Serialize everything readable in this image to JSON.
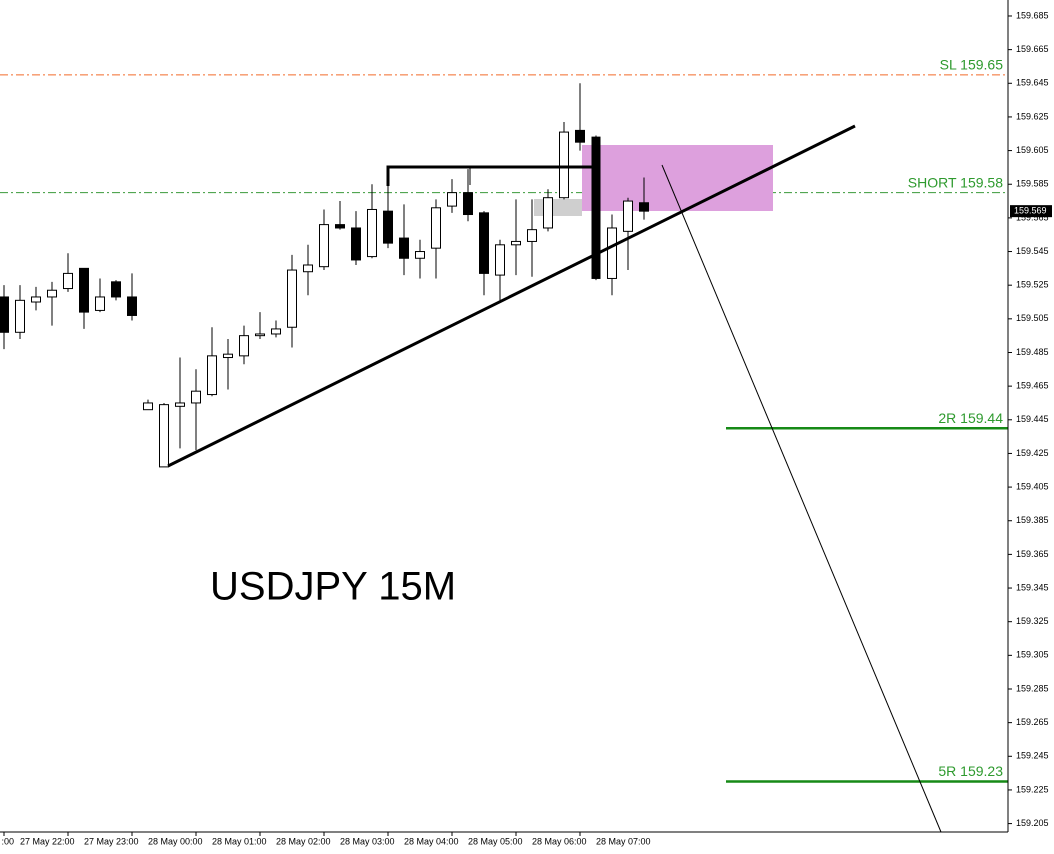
{
  "chart_data": {
    "type": "candlestick",
    "title": "USDJPY 15M",
    "open": [
      159.518,
      159.497,
      159.515,
      159.518,
      159.523,
      159.535,
      159.51,
      159.527,
      159.518,
      159.451,
      159.417,
      159.453,
      159.455,
      159.46,
      159.482,
      159.483,
      159.495,
      159.496,
      159.5,
      159.533,
      159.536,
      159.561,
      159.559,
      159.542,
      159.569,
      159.553,
      159.541,
      159.547,
      159.572,
      159.58,
      159.568,
      159.531,
      159.549,
      159.551,
      159.559,
      159.577,
      159.617,
      159.613,
      159.529,
      159.557,
      159.574
    ],
    "high": [
      159.525,
      159.525,
      159.524,
      159.527,
      159.544,
      159.535,
      159.529,
      159.528,
      159.532,
      159.457,
      159.455,
      159.482,
      159.475,
      159.5,
      159.493,
      159.501,
      159.509,
      159.504,
      159.543,
      159.549,
      159.57,
      159.575,
      159.569,
      159.585,
      159.595,
      159.573,
      159.552,
      159.576,
      159.588,
      159.594,
      159.569,
      159.552,
      159.576,
      159.576,
      159.582,
      159.622,
      159.645,
      159.614,
      159.567,
      159.577,
      159.589
    ],
    "low": [
      159.487,
      159.493,
      159.51,
      159.501,
      159.521,
      159.499,
      159.509,
      159.516,
      159.504,
      159.451,
      159.417,
      159.428,
      159.427,
      159.459,
      159.463,
      159.478,
      159.493,
      159.494,
      159.488,
      159.519,
      159.534,
      159.558,
      159.537,
      159.541,
      159.547,
      159.531,
      159.529,
      159.529,
      159.568,
      159.563,
      159.519,
      159.516,
      159.531,
      159.53,
      159.557,
      159.576,
      159.605,
      159.528,
      159.519,
      159.534,
      159.564
    ],
    "close": [
      159.497,
      159.516,
      159.518,
      159.522,
      159.532,
      159.509,
      159.518,
      159.518,
      159.507,
      159.455,
      159.454,
      159.455,
      159.462,
      159.483,
      159.484,
      159.495,
      159.496,
      159.499,
      159.534,
      159.537,
      159.561,
      159.559,
      159.54,
      159.57,
      159.55,
      159.541,
      159.545,
      159.571,
      159.58,
      159.567,
      159.532,
      159.549,
      159.551,
      159.558,
      159.577,
      159.616,
      159.61,
      159.529,
      159.559,
      159.575,
      159.569
    ],
    "x_labels": [
      ":00",
      "27 May 22:00",
      "27 May 23:00",
      "28 May 00:00",
      "28 May 01:00",
      "28 May 02:00",
      "28 May 03:00",
      "28 May 04:00",
      "28 May 05:00",
      "28 May 06:00",
      "28 May 07:00"
    ],
    "ylim": [
      159.2,
      159.6945
    ],
    "yticks": [
      159.205,
      159.225,
      159.245,
      159.265,
      159.285,
      159.305,
      159.325,
      159.345,
      159.365,
      159.385,
      159.405,
      159.425,
      159.445,
      159.465,
      159.485,
      159.505,
      159.525,
      159.545,
      159.565,
      159.585,
      159.605,
      159.625,
      159.645,
      159.665,
      159.685
    ],
    "current_price": 159.569,
    "levels": [
      {
        "label": "SL 159.65",
        "value": 159.65,
        "color": "#f26b2a",
        "style": "dash-dot"
      },
      {
        "label": "SHORT 159.58",
        "value": 159.58,
        "color": "#3a9a3a",
        "style": "dash-dot"
      },
      {
        "label": "2R 159.44",
        "value": 159.44,
        "color": "#168a16",
        "style": "solid"
      },
      {
        "label": "5R 159.23",
        "value": 159.23,
        "color": "#168a16",
        "style": "solid"
      }
    ]
  }
}
